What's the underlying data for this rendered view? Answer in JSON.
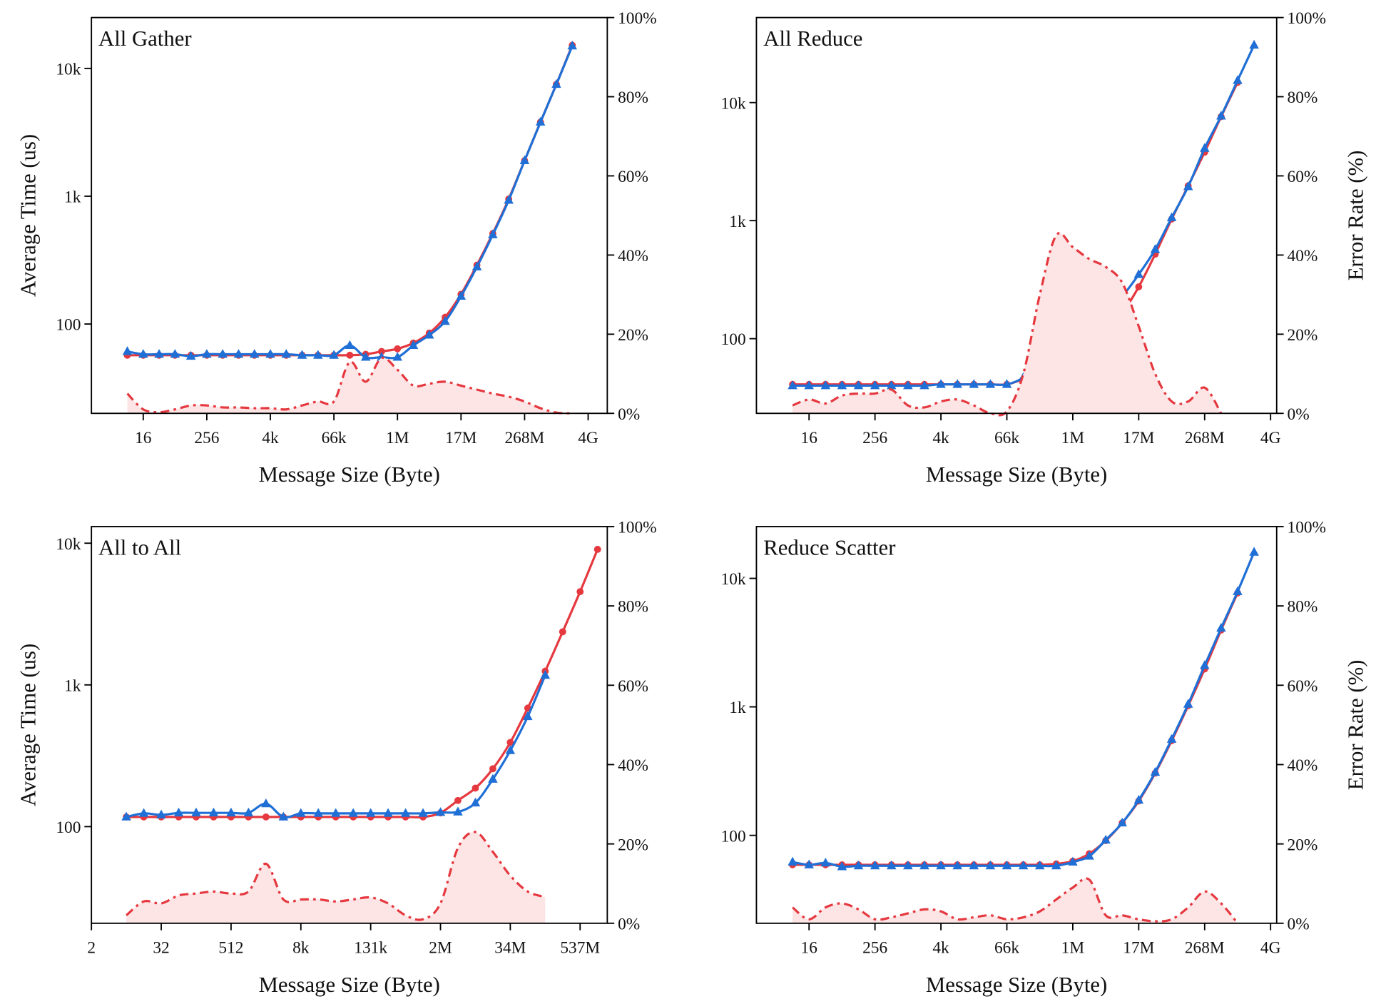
{
  "chart_data": [
    {
      "type": "line",
      "title": "All Gather",
      "xlabel": "Message Size (Byte)",
      "ylabel": "Average Time (us)",
      "xscale": "log",
      "yscale": "log",
      "x": [
        8,
        16,
        32,
        64,
        128,
        256,
        512,
        1024,
        2048,
        4096,
        8192,
        16384,
        32768,
        65536,
        131072,
        262144,
        524288,
        1048576,
        2097152,
        4194304,
        8388608,
        16777216,
        33554432,
        67108864,
        134217728,
        268435456,
        536870912,
        1073741824,
        2147483648
      ],
      "xlim": [
        1.67,
        9900000000
      ],
      "xticks": [
        16,
        256,
        {
          "value": 4096,
          "label": "4k"
        },
        {
          "value": 65536,
          "label": "66k"
        },
        {
          "value": 1048576,
          "label": "1M"
        },
        {
          "value": 16777216,
          "label": "17M"
        },
        {
          "value": 268435456,
          "label": "268M"
        },
        {
          "value": 4294967296,
          "label": "4G"
        }
      ],
      "ylim": [
        20,
        25000
      ],
      "yticks": [
        100,
        {
          "value": 1000,
          "label": "1k"
        },
        {
          "value": 10000,
          "label": "10k"
        }
      ],
      "y2lim": [
        0,
        100
      ],
      "y2ticks": [
        {
          "value": 0,
          "label": "0%"
        },
        {
          "value": 20,
          "label": "20%"
        },
        {
          "value": 40,
          "label": "40%"
        },
        {
          "value": 60,
          "label": "60%"
        },
        {
          "value": 80,
          "label": "80%"
        },
        {
          "value": 100,
          "label": "100%"
        }
      ],
      "series": [
        {
          "color": "#e5383f",
          "marker": "circle",
          "values": [
            57,
            57,
            57,
            57,
            57,
            57,
            57,
            57,
            57,
            57,
            57,
            57,
            57,
            57,
            57,
            58,
            61,
            64,
            71,
            85,
            113,
            171,
            289,
            511,
            950,
            1900,
            3800,
            7500,
            15200
          ]
        },
        {
          "color": "#1f6fd6",
          "marker": "triangle",
          "values": [
            61,
            58,
            58,
            58,
            56,
            58,
            58,
            58,
            58,
            58,
            58,
            57,
            57,
            57,
            68,
            55,
            55,
            55,
            68,
            82,
            105,
            165,
            280,
            500,
            930,
            1900,
            3800,
            7500,
            15000
          ]
        },
        {
          "color": "#e5383f",
          "axis": "y2",
          "linestyle": "dashdot",
          "fill": "#fde4e5",
          "values": [
            5,
            1,
            0.3,
            1,
            2,
            2,
            1.5,
            1.5,
            1.3,
            1.3,
            1,
            2,
            3,
            3,
            13,
            8,
            14,
            11,
            7,
            7.5,
            8,
            7,
            6,
            5,
            4.2,
            3,
            1.3,
            0.2,
            0
          ]
        }
      ]
    },
    {
      "type": "line",
      "title": "All Reduce",
      "xlabel": "Message Size (Byte)",
      "y2label": "Error Rate (%)",
      "xscale": "log",
      "yscale": "log",
      "x": [
        8,
        16,
        32,
        64,
        128,
        256,
        512,
        1024,
        2048,
        4096,
        8192,
        16384,
        32768,
        65536,
        131072,
        262144,
        524288,
        1048576,
        2097152,
        4194304,
        8388608,
        16777216,
        33554432,
        67108864,
        134217728,
        268435456,
        536870912,
        1073741824,
        2147483648
      ],
      "xlim": [
        1.75,
        5550000000
      ],
      "xticks": [
        16,
        256,
        {
          "value": 4096,
          "label": "4k"
        },
        {
          "value": 65536,
          "label": "66k"
        },
        {
          "value": 1048576,
          "label": "1M"
        },
        {
          "value": 16777216,
          "label": "17M"
        },
        {
          "value": 268435456,
          "label": "268M"
        },
        {
          "value": 4294967296,
          "label": "4G"
        }
      ],
      "ylim": [
        23.3,
        52500
      ],
      "yticks": [
        100,
        {
          "value": 1000,
          "label": "1k"
        },
        {
          "value": 10000,
          "label": "10k"
        }
      ],
      "y2lim": [
        0,
        100
      ],
      "y2ticks": [
        {
          "value": 0,
          "label": "0%"
        },
        {
          "value": 20,
          "label": "20%"
        },
        {
          "value": 40,
          "label": "40%"
        },
        {
          "value": 60,
          "label": "60%"
        },
        {
          "value": 80,
          "label": "80%"
        },
        {
          "value": 100,
          "label": "100%"
        }
      ],
      "series": [
        {
          "color": "#e5383f",
          "marker": "circle",
          "values": [
            41,
            41,
            41,
            41,
            41,
            41,
            41,
            41,
            41,
            41,
            41,
            41,
            41,
            41,
            45,
            46,
            49,
            56,
            71,
            102,
            162,
            275,
            520,
            1030,
            1970,
            3800,
            7600,
            14800,
            null
          ]
        },
        {
          "color": "#1f6fd6",
          "marker": "triangle",
          "values": [
            40,
            40,
            40,
            40,
            40,
            40,
            40,
            40,
            40,
            41,
            41,
            41,
            41,
            41,
            47,
            65,
            99,
            95,
            117,
            162,
            228,
            350,
            570,
            1060,
            1940,
            4100,
            7700,
            15400,
            30700
          ]
        },
        {
          "color": "#e5383f",
          "axis": "y2",
          "linestyle": "dashdot",
          "fill": "#fde4e5",
          "values": [
            2,
            3.5,
            2.5,
            4.5,
            5,
            5,
            6,
            2,
            1.5,
            3,
            3.5,
            2,
            0,
            0.5,
            10,
            30,
            45,
            42,
            39,
            37,
            33,
            22,
            10,
            3,
            3,
            6.5,
            0,
            null,
            null
          ]
        }
      ]
    },
    {
      "type": "line",
      "title": "All to All",
      "xlabel": "Message Size (Byte)",
      "ylabel": "Average Time (us)",
      "xscale": "log",
      "yscale": "log",
      "x": [
        8,
        16,
        32,
        64,
        128,
        256,
        512,
        1024,
        2048,
        4096,
        8192,
        16384,
        32768,
        65536,
        131072,
        262144,
        524288,
        1048576,
        2097152,
        4194304,
        8388608,
        16777216,
        33554432,
        67108864,
        134217728,
        268435456,
        536870912,
        1073741824
      ],
      "xlim": [
        2,
        1580000000
      ],
      "xticks": [
        2,
        32,
        512,
        {
          "value": 8192,
          "label": "8k"
        },
        {
          "value": 131072,
          "label": "131k"
        },
        {
          "value": 2097152,
          "label": "2M"
        },
        {
          "value": 33554432,
          "label": "34M"
        },
        {
          "value": 536870912,
          "label": "537M"
        }
      ],
      "ylim": [
        20.8,
        13100
      ],
      "yticks": [
        100,
        {
          "value": 1000,
          "label": "1k"
        },
        {
          "value": 10000,
          "label": "10k"
        }
      ],
      "y2lim": [
        0,
        100
      ],
      "y2ticks": [
        {
          "value": 0,
          "label": "0%"
        },
        {
          "value": 20,
          "label": "20%"
        },
        {
          "value": 40,
          "label": "40%"
        },
        {
          "value": 60,
          "label": "60%"
        },
        {
          "value": 80,
          "label": "80%"
        },
        {
          "value": 100,
          "label": "100%"
        }
      ],
      "series": [
        {
          "color": "#e5383f",
          "marker": "circle",
          "values": [
            117,
            117,
            117,
            117,
            117,
            117,
            117,
            117,
            117,
            117,
            117,
            117,
            117,
            117,
            117,
            117,
            117,
            117,
            125,
            153,
            187,
            256,
            393,
            686,
            1250,
            2370,
            4550,
            9050
          ]
        },
        {
          "color": "#1f6fd6",
          "marker": "triangle",
          "values": [
            117,
            124,
            121,
            125,
            125,
            125,
            125,
            125,
            145,
            117,
            124,
            124,
            124,
            124,
            124,
            124,
            124,
            124,
            126,
            127,
            147,
            216,
            344,
            598,
            1170,
            null,
            null,
            null
          ]
        },
        {
          "color": "#e5383f",
          "axis": "y2",
          "linestyle": "dashdot",
          "fill": "#fde4e5",
          "values": [
            2,
            5.5,
            5,
            7,
            7.5,
            8,
            7.5,
            8,
            15,
            6,
            6,
            6,
            5.5,
            6,
            6.5,
            5,
            2,
            1,
            5,
            19,
            23,
            18,
            12,
            8,
            6.6,
            null,
            null,
            null
          ]
        }
      ]
    },
    {
      "type": "line",
      "title": "Reduce Scatter",
      "xlabel": "Message Size (Byte)",
      "y2label": "Error Rate (%)",
      "xscale": "log",
      "yscale": "log",
      "x": [
        8,
        16,
        32,
        64,
        128,
        256,
        512,
        1024,
        2048,
        4096,
        8192,
        16384,
        32768,
        65536,
        131072,
        262144,
        524288,
        1048576,
        2097152,
        4194304,
        8388608,
        16777216,
        33554432,
        67108864,
        134217728,
        268435456,
        536870912,
        1073741824,
        2147483648
      ],
      "xlim": [
        1.75,
        5550000000
      ],
      "xticks": [
        16,
        256,
        {
          "value": 4096,
          "label": "4k"
        },
        {
          "value": 65536,
          "label": "66k"
        },
        {
          "value": 1048576,
          "label": "1M"
        },
        {
          "value": 16777216,
          "label": "17M"
        },
        {
          "value": 268435456,
          "label": "268M"
        },
        {
          "value": 4294967296,
          "label": "4G"
        }
      ],
      "ylim": [
        20.7,
        25300
      ],
      "yticks": [
        100,
        {
          "value": 1000,
          "label": "1k"
        },
        {
          "value": 10000,
          "label": "10k"
        }
      ],
      "y2lim": [
        0,
        100
      ],
      "y2ticks": [
        {
          "value": 0,
          "label": "0%"
        },
        {
          "value": 20,
          "label": "20%"
        },
        {
          "value": 40,
          "label": "40%"
        },
        {
          "value": 60,
          "label": "60%"
        },
        {
          "value": 80,
          "label": "80%"
        },
        {
          "value": 100,
          "label": "100%"
        }
      ],
      "series": [
        {
          "color": "#e5383f",
          "marker": "circle",
          "values": [
            59,
            59,
            59,
            59,
            59,
            59,
            59,
            59,
            59,
            59,
            59,
            59,
            59,
            59,
            59,
            59,
            60,
            63,
            72,
            91,
            125,
            185,
            305,
            545,
            1020,
            1970,
            3960,
            7700,
            null
          ]
        },
        {
          "color": "#1f6fd6",
          "marker": "triangle",
          "values": [
            62,
            59,
            61,
            57,
            58,
            58,
            58,
            58,
            58,
            58,
            58,
            58,
            58,
            58,
            58,
            58,
            58,
            62,
            69,
            92,
            125,
            188,
            310,
            560,
            1050,
            2100,
            4100,
            7900,
            16000
          ]
        },
        {
          "color": "#e5383f",
          "axis": "y2",
          "linestyle": "dashdot",
          "fill": "#fde4e5",
          "values": [
            4,
            1,
            4,
            5,
            3.5,
            1,
            1.5,
            2.5,
            3.5,
            3,
            1,
            1.5,
            2,
            1,
            1.5,
            3,
            6,
            9,
            11,
            2,
            2,
            1,
            0.5,
            1,
            4,
            8,
            5,
            0,
            null
          ]
        }
      ]
    }
  ]
}
